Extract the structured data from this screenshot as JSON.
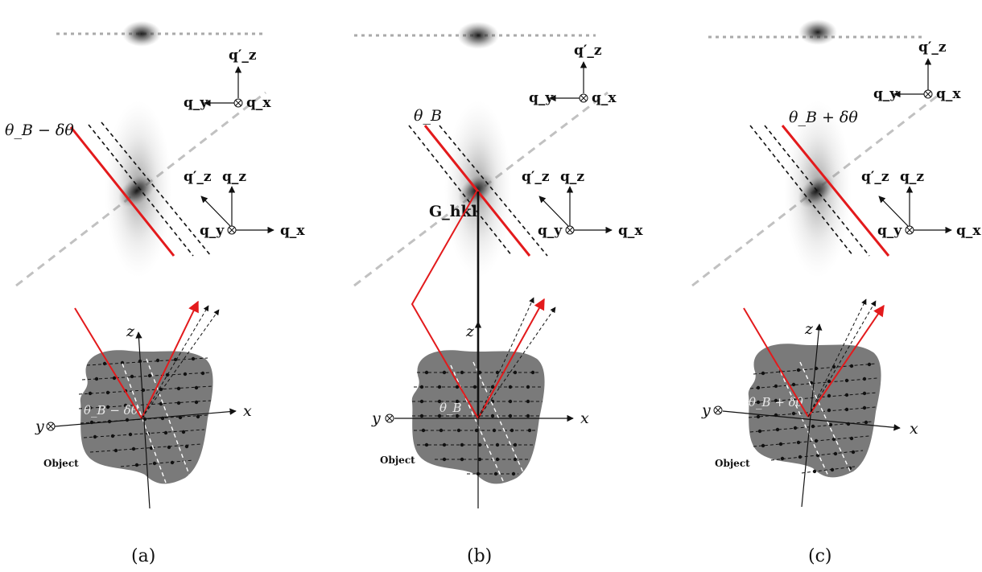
{
  "panels": [
    {
      "caption": "(a)",
      "ewald_label": "θ_B − δθ",
      "angle_label": "θ_B − δθ",
      "g_label": "",
      "mode": "minus"
    },
    {
      "caption": "(b)",
      "ewald_label": "θ_B",
      "angle_label": "θ_B",
      "g_label": "G_hkl",
      "mode": "bragg"
    },
    {
      "caption": "(c)",
      "ewald_label": "θ_B + δθ",
      "angle_label": "θ_B + δθ",
      "g_label": "",
      "mode": "plus"
    }
  ],
  "axes": {
    "q_x": "q_x",
    "q_y": "q_y",
    "q_z": "q_z",
    "q_z_prime": "q′_z",
    "x": "x",
    "y": "y",
    "z": "z"
  },
  "object_label": "Object",
  "colors": {
    "beam": "#e31a1c",
    "object_fill": "#7a7a7a",
    "speckle": "#222222"
  }
}
